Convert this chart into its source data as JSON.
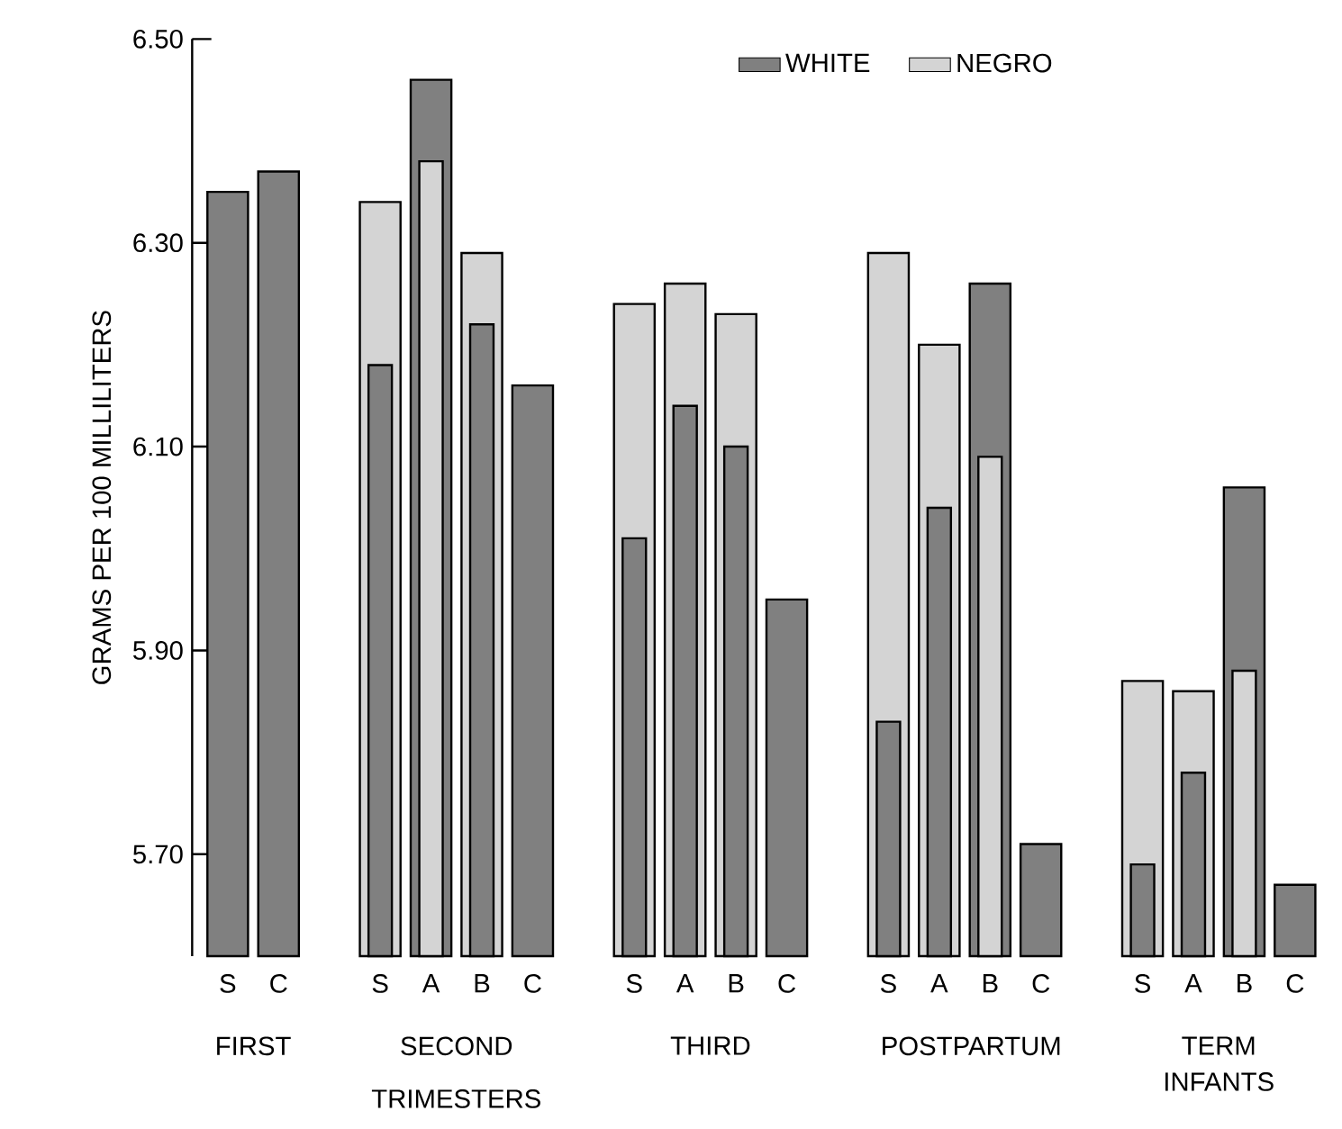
{
  "chart_data": {
    "type": "bar",
    "ylabel": "GRAMS PER 100 MILLILITERS",
    "categories": [
      "S",
      "C",
      null,
      "S",
      "A",
      "B",
      "C",
      null,
      "S",
      "A",
      "B",
      "C",
      null,
      "S",
      "A",
      "B",
      "C",
      null,
      "S",
      "A",
      "B",
      "C"
    ],
    "series": [
      {
        "name": "WHITE",
        "color": "#808080",
        "values": [
          6.35,
          6.37,
          null,
          6.18,
          6.46,
          6.22,
          6.16,
          null,
          6.01,
          6.14,
          6.1,
          5.95,
          null,
          5.83,
          6.04,
          6.26,
          5.71,
          null,
          5.69,
          5.78,
          6.06,
          5.67
        ]
      },
      {
        "name": "NEGRO",
        "color": "#d4d4d4",
        "values": [
          null,
          null,
          null,
          6.34,
          6.38,
          6.29,
          null,
          null,
          6.24,
          6.26,
          6.23,
          null,
          null,
          6.29,
          6.2,
          6.09,
          null,
          null,
          5.87,
          5.86,
          5.88,
          null
        ]
      }
    ],
    "ylim": [
      5.6,
      6.5
    ],
    "yticks": [
      {
        "value": 5.7,
        "label": "5.70"
      },
      {
        "value": 5.9,
        "label": "5.90"
      },
      {
        "value": 6.1,
        "label": "6.10"
      },
      {
        "value": 6.3,
        "label": "6.30"
      },
      {
        "value": 6.5,
        "label": "6.50"
      }
    ],
    "legend": "top",
    "annotations": [
      "FIRST",
      "SECOND",
      "THIRD",
      "POSTPARTUM",
      "TERM INFANTS",
      "TRIMESTERS"
    ]
  }
}
